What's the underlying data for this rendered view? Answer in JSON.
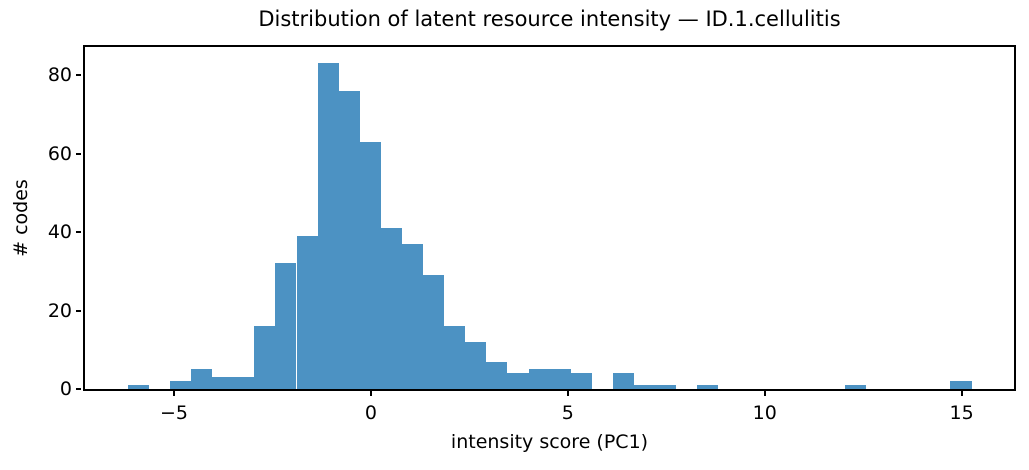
{
  "title": "Distribution of latent resource intensity — ID.1.cellulitis",
  "chart_data": {
    "type": "bar",
    "subtype": "histogram",
    "title": "Distribution of latent resource intensity — ID.1.cellulitis",
    "xlabel": "intensity score (PC1)",
    "ylabel": "# codes",
    "bar_color": "#4C92C3",
    "axis_color": "#000000",
    "background_color": "#ffffff",
    "grid": false,
    "legend": null,
    "bin_start": -6.175,
    "bin_width": 0.5357,
    "n_bins": 40,
    "counts": [
      1,
      0,
      2,
      5,
      3,
      3,
      16,
      32,
      39,
      83,
      76,
      63,
      41,
      37,
      29,
      16,
      12,
      7,
      4,
      5,
      5,
      4,
      0,
      4,
      1,
      1,
      0,
      1,
      0,
      0,
      0,
      0,
      0,
      0,
      1,
      0,
      0,
      0,
      0,
      2
    ],
    "xlim": [
      -7.26,
      16.33
    ],
    "ylim": [
      0,
      87.15
    ],
    "xticks": [
      -5,
      0,
      5,
      10,
      15
    ],
    "xtick_labels": [
      "−5",
      "0",
      "5",
      "10",
      "15"
    ],
    "yticks": [
      0,
      20,
      40,
      60,
      80
    ],
    "ytick_labels": [
      "0",
      "20",
      "40",
      "60",
      "80"
    ]
  }
}
